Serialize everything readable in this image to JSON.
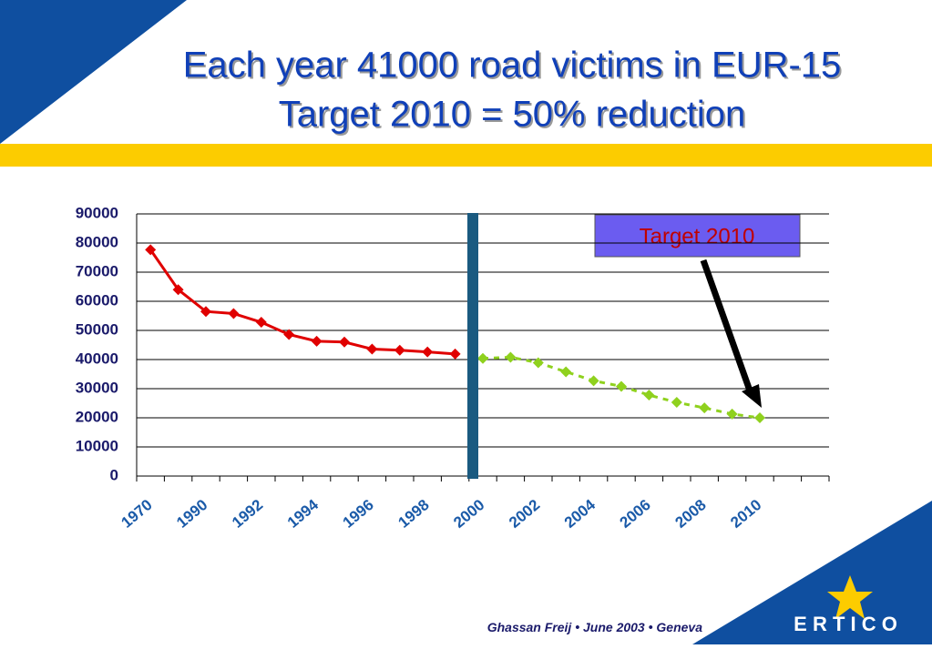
{
  "title": "Each year 41000 road victims in EUR-15",
  "subtitle": "Target 2010 = 50% reduction",
  "footer": {
    "author": "Ghassan Freij",
    "date": "June 2003",
    "place": "Geneva",
    "logo": "E R T I C O"
  },
  "chart_data": {
    "type": "line",
    "annotation": "Target 2010",
    "categories": [
      "1970",
      null,
      "1990",
      null,
      "1992",
      null,
      "1994",
      null,
      "1996",
      null,
      "1998",
      null,
      "2000",
      null,
      "2002",
      null,
      "2004",
      null,
      "2006",
      null,
      "2008",
      null,
      "2010",
      null,
      null
    ],
    "series": [
      {
        "color": "#e00000",
        "values": [
          77700,
          64000,
          56500,
          55800,
          52800,
          48600,
          46300,
          46000,
          43600,
          43200,
          42600,
          41900,
          null,
          null,
          null,
          null,
          null,
          null,
          null,
          null,
          null,
          null,
          null,
          null,
          null
        ]
      },
      {
        "color": "#8fd11e",
        "dashed": true,
        "values": [
          null,
          null,
          null,
          null,
          null,
          null,
          null,
          null,
          null,
          null,
          null,
          null,
          40400,
          40800,
          38900,
          35800,
          32700,
          30800,
          27800,
          25300,
          23400,
          21300,
          20000,
          null,
          null
        ]
      }
    ],
    "ylim": [
      0,
      90000
    ],
    "yticks": [
      0,
      10000,
      20000,
      30000,
      40000,
      50000,
      60000,
      70000,
      80000,
      90000
    ],
    "grid": true
  }
}
